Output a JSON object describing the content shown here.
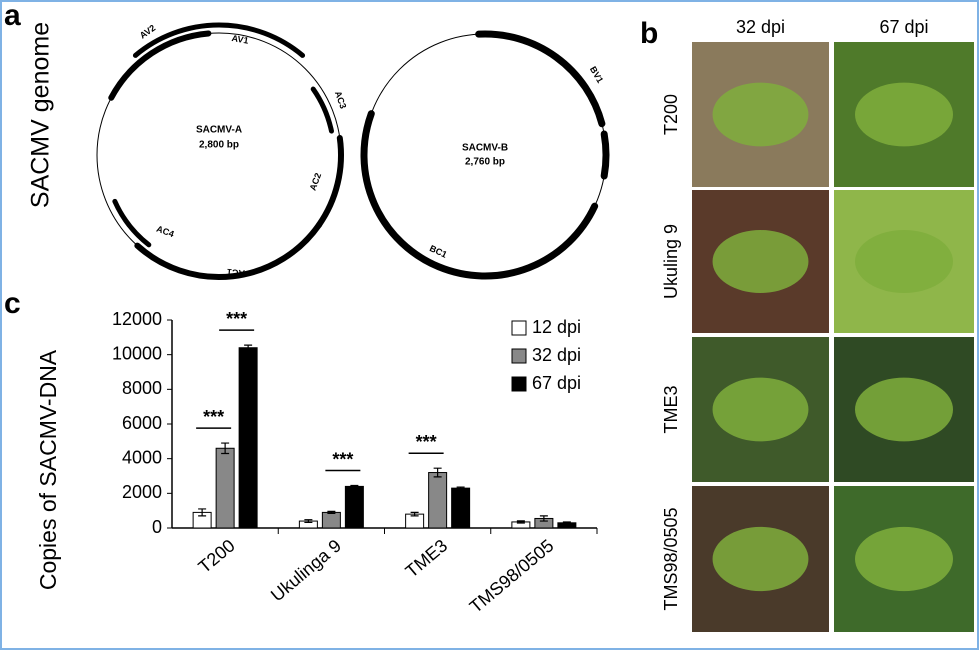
{
  "panel_a": {
    "label": "a",
    "title": "SACMV genome",
    "maps": [
      {
        "name": "SACMV-A",
        "size": "2,800 bp",
        "genes": [
          "AV2",
          "AV1",
          "AC3",
          "AC2",
          "AC4",
          "AC1"
        ]
      },
      {
        "name": "SACMV-B",
        "size": "2,760 bp",
        "genes": [
          "BV1",
          "BC1"
        ]
      }
    ]
  },
  "panel_b": {
    "label": "b",
    "columns": [
      "32 dpi",
      "67 dpi"
    ],
    "rows": [
      "T200",
      "Ukuling 9",
      "TME3",
      "TMS98/0505"
    ]
  },
  "panel_c": {
    "label": "c"
  },
  "chart_data": {
    "type": "bar",
    "ylabel": "Copies of SACMV-DNA",
    "categories": [
      "T200",
      "Ukulinga 9",
      "TME3",
      "TMS98/0505"
    ],
    "series": [
      {
        "name": "12 dpi",
        "color": "#ffffff",
        "values": [
          900,
          400,
          800,
          350
        ],
        "errors": [
          200,
          80,
          100,
          60
        ]
      },
      {
        "name": "32 dpi",
        "color": "#888888",
        "values": [
          4600,
          900,
          3200,
          550
        ],
        "errors": [
          300,
          60,
          250,
          150
        ]
      },
      {
        "name": "67 dpi",
        "color": "#000000",
        "values": [
          10400,
          2400,
          2300,
          300
        ],
        "errors": [
          150,
          50,
          60,
          50
        ]
      }
    ],
    "ylim": [
      0,
      12000
    ],
    "yticks": [
      0,
      2000,
      4000,
      6000,
      8000,
      10000,
      12000
    ],
    "annotations": [
      {
        "text": "***",
        "category": 0,
        "series": [
          0,
          1
        ]
      },
      {
        "text": "***",
        "category": 0,
        "series": [
          1,
          2
        ]
      },
      {
        "text": "***",
        "category": 1,
        "series": [
          1,
          2
        ]
      },
      {
        "text": "***",
        "category": 2,
        "series": [
          0,
          1
        ]
      }
    ]
  }
}
